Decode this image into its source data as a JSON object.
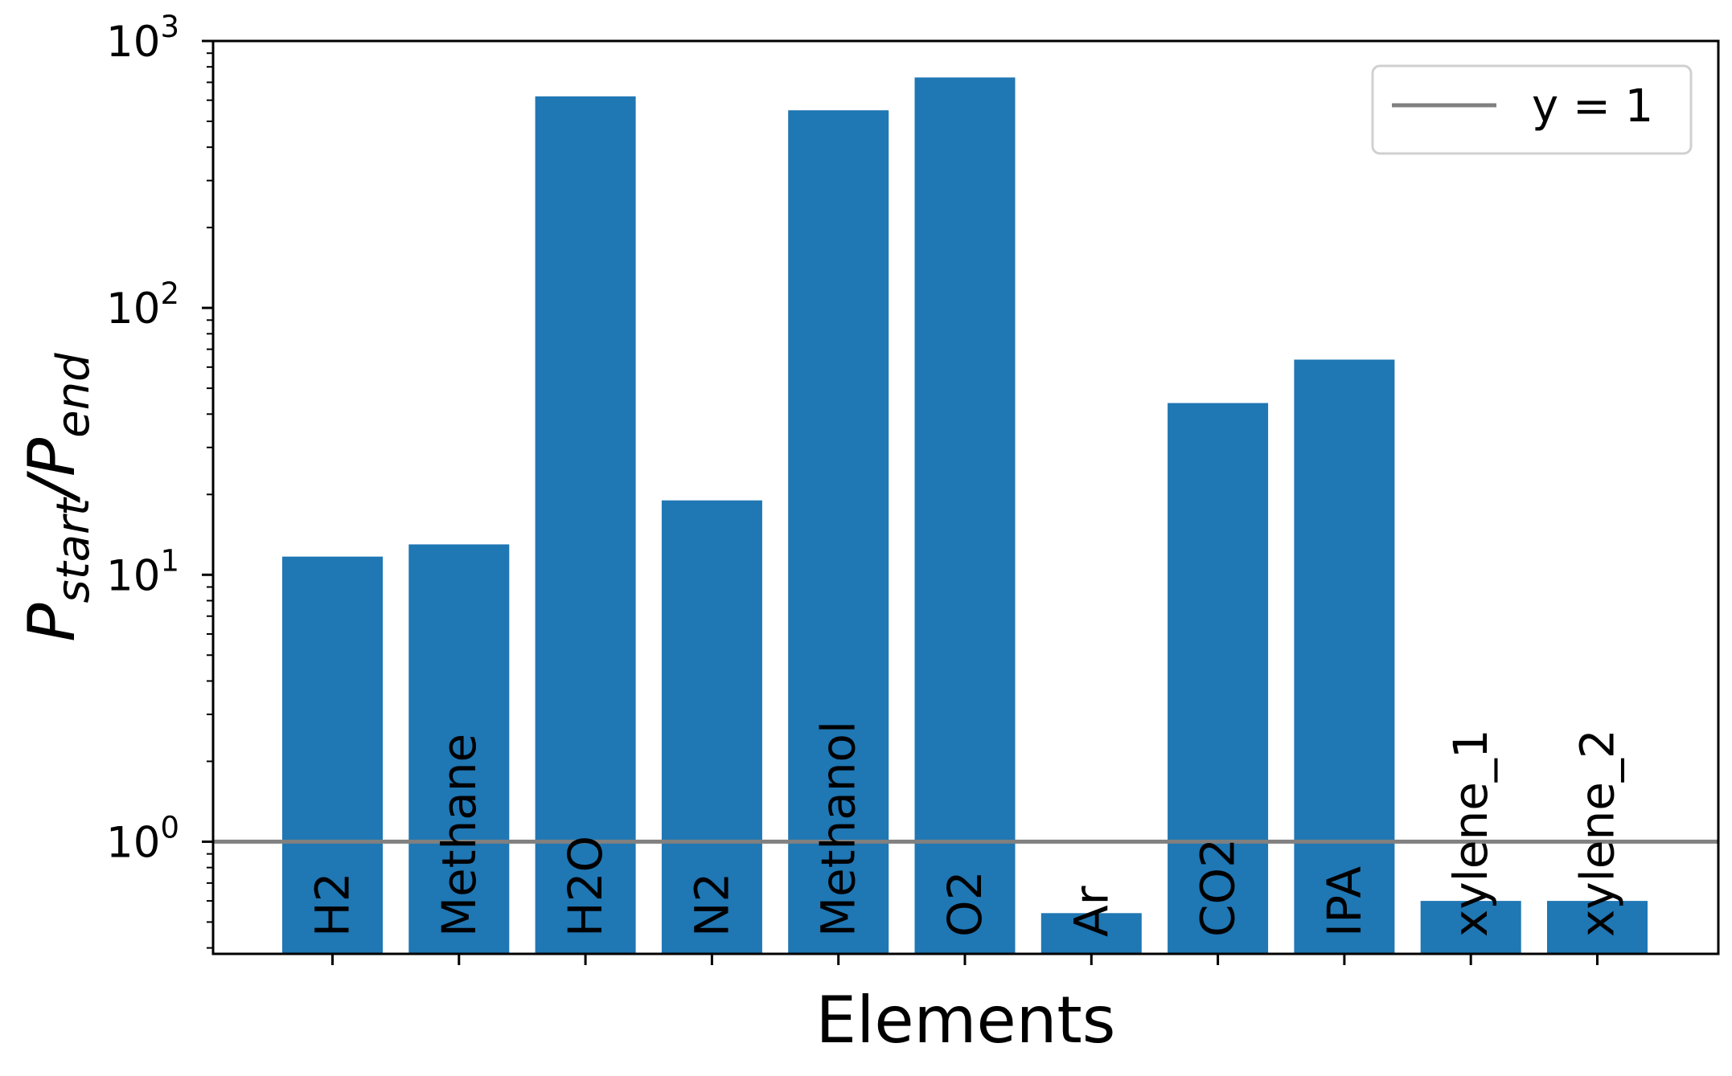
{
  "chart_data": {
    "type": "bar",
    "scale_y": "log",
    "categories": [
      "H2",
      "Methane",
      "H2O",
      "N2",
      "Methanol",
      "O2",
      "Ar",
      "CO2",
      "IPA",
      "xylene_1",
      "xylene_2"
    ],
    "values": [
      11.7,
      13.0,
      620,
      19.0,
      550,
      730,
      0.54,
      44,
      64,
      0.6,
      0.6
    ],
    "color": "#1f77b4",
    "xlabel": "Elements",
    "ylabel": {
      "main": "P",
      "sub1": "start",
      "slash": "/",
      "main2": "P",
      "sub2": "end"
    },
    "ylim": [
      0.38,
      1000
    ],
    "yticks": [
      {
        "base": "10",
        "exp": "0",
        "value": 1
      },
      {
        "base": "10",
        "exp": "1",
        "value": 10
      },
      {
        "base": "10",
        "exp": "2",
        "value": 100
      },
      {
        "base": "10",
        "exp": "3",
        "value": 1000
      }
    ],
    "reference_line": {
      "y": 1,
      "color": "#808080",
      "label": "y = 1"
    },
    "legend": {
      "position": "top-right",
      "entries": [
        "y = 1"
      ]
    },
    "grid": false
  }
}
